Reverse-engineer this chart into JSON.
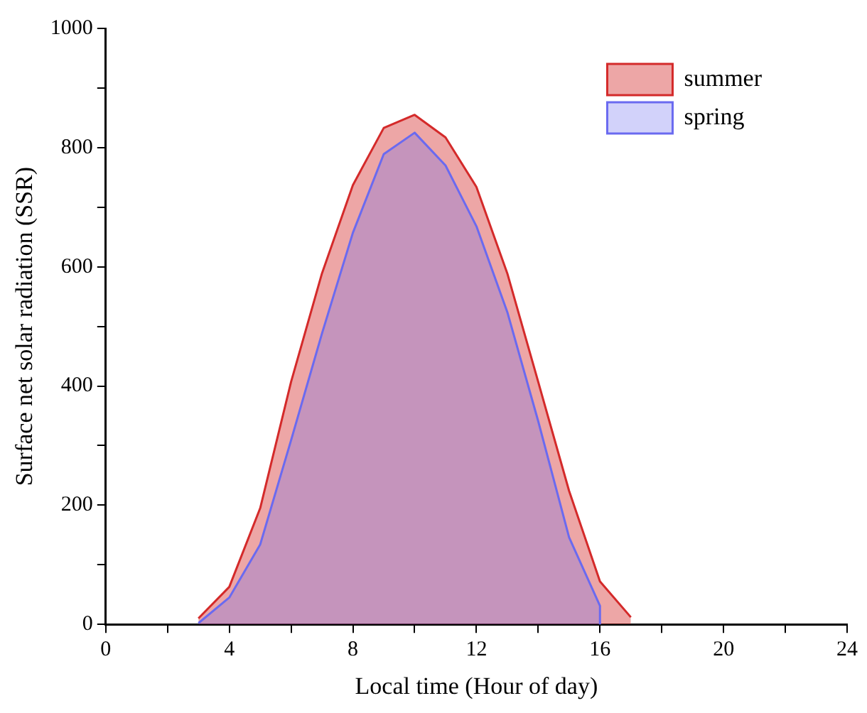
{
  "chart_data": {
    "type": "area",
    "xlabel": "Local time (Hour of day)",
    "ylabel": "Surface net solar radiation (SSR)",
    "xlim": [
      0,
      24
    ],
    "xticks": [
      0,
      {
        "value": 2,
        "label": null
      },
      4,
      {
        "value": 6,
        "label": null
      },
      8,
      {
        "value": 10,
        "label": null
      },
      12,
      {
        "value": 14,
        "label": null
      },
      16,
      {
        "value": 18,
        "label": null
      },
      20,
      {
        "value": 22,
        "label": null
      },
      24
    ],
    "ylim": [
      0,
      1000
    ],
    "yticks": [
      0,
      {
        "value": 100,
        "label": null
      },
      200,
      {
        "value": 300,
        "label": null
      },
      400,
      {
        "value": 500,
        "label": null
      },
      600,
      {
        "value": 700,
        "label": null
      },
      800,
      {
        "value": 900,
        "label": null
      },
      1000
    ],
    "legend": "top right",
    "grid": false,
    "series": [
      {
        "name": "summer",
        "color": "#d42a2a",
        "x": [
          3,
          4,
          5,
          6,
          7,
          8,
          9,
          10,
          11,
          12,
          13,
          14,
          15,
          16,
          17
        ],
        "values": [
          10,
          63,
          195,
          407,
          589,
          737,
          833,
          855,
          817,
          734,
          589,
          407,
          224,
          72,
          12
        ]
      },
      {
        "name": "spring",
        "color": "#6a6af0",
        "x": [
          3,
          4,
          5,
          6,
          7,
          8,
          9,
          10,
          11,
          12,
          13,
          14,
          15,
          16,
          16
        ],
        "values": [
          2,
          45,
          134,
          309,
          488,
          657,
          789,
          825,
          770,
          668,
          524,
          341,
          146,
          31,
          0
        ]
      }
    ]
  }
}
